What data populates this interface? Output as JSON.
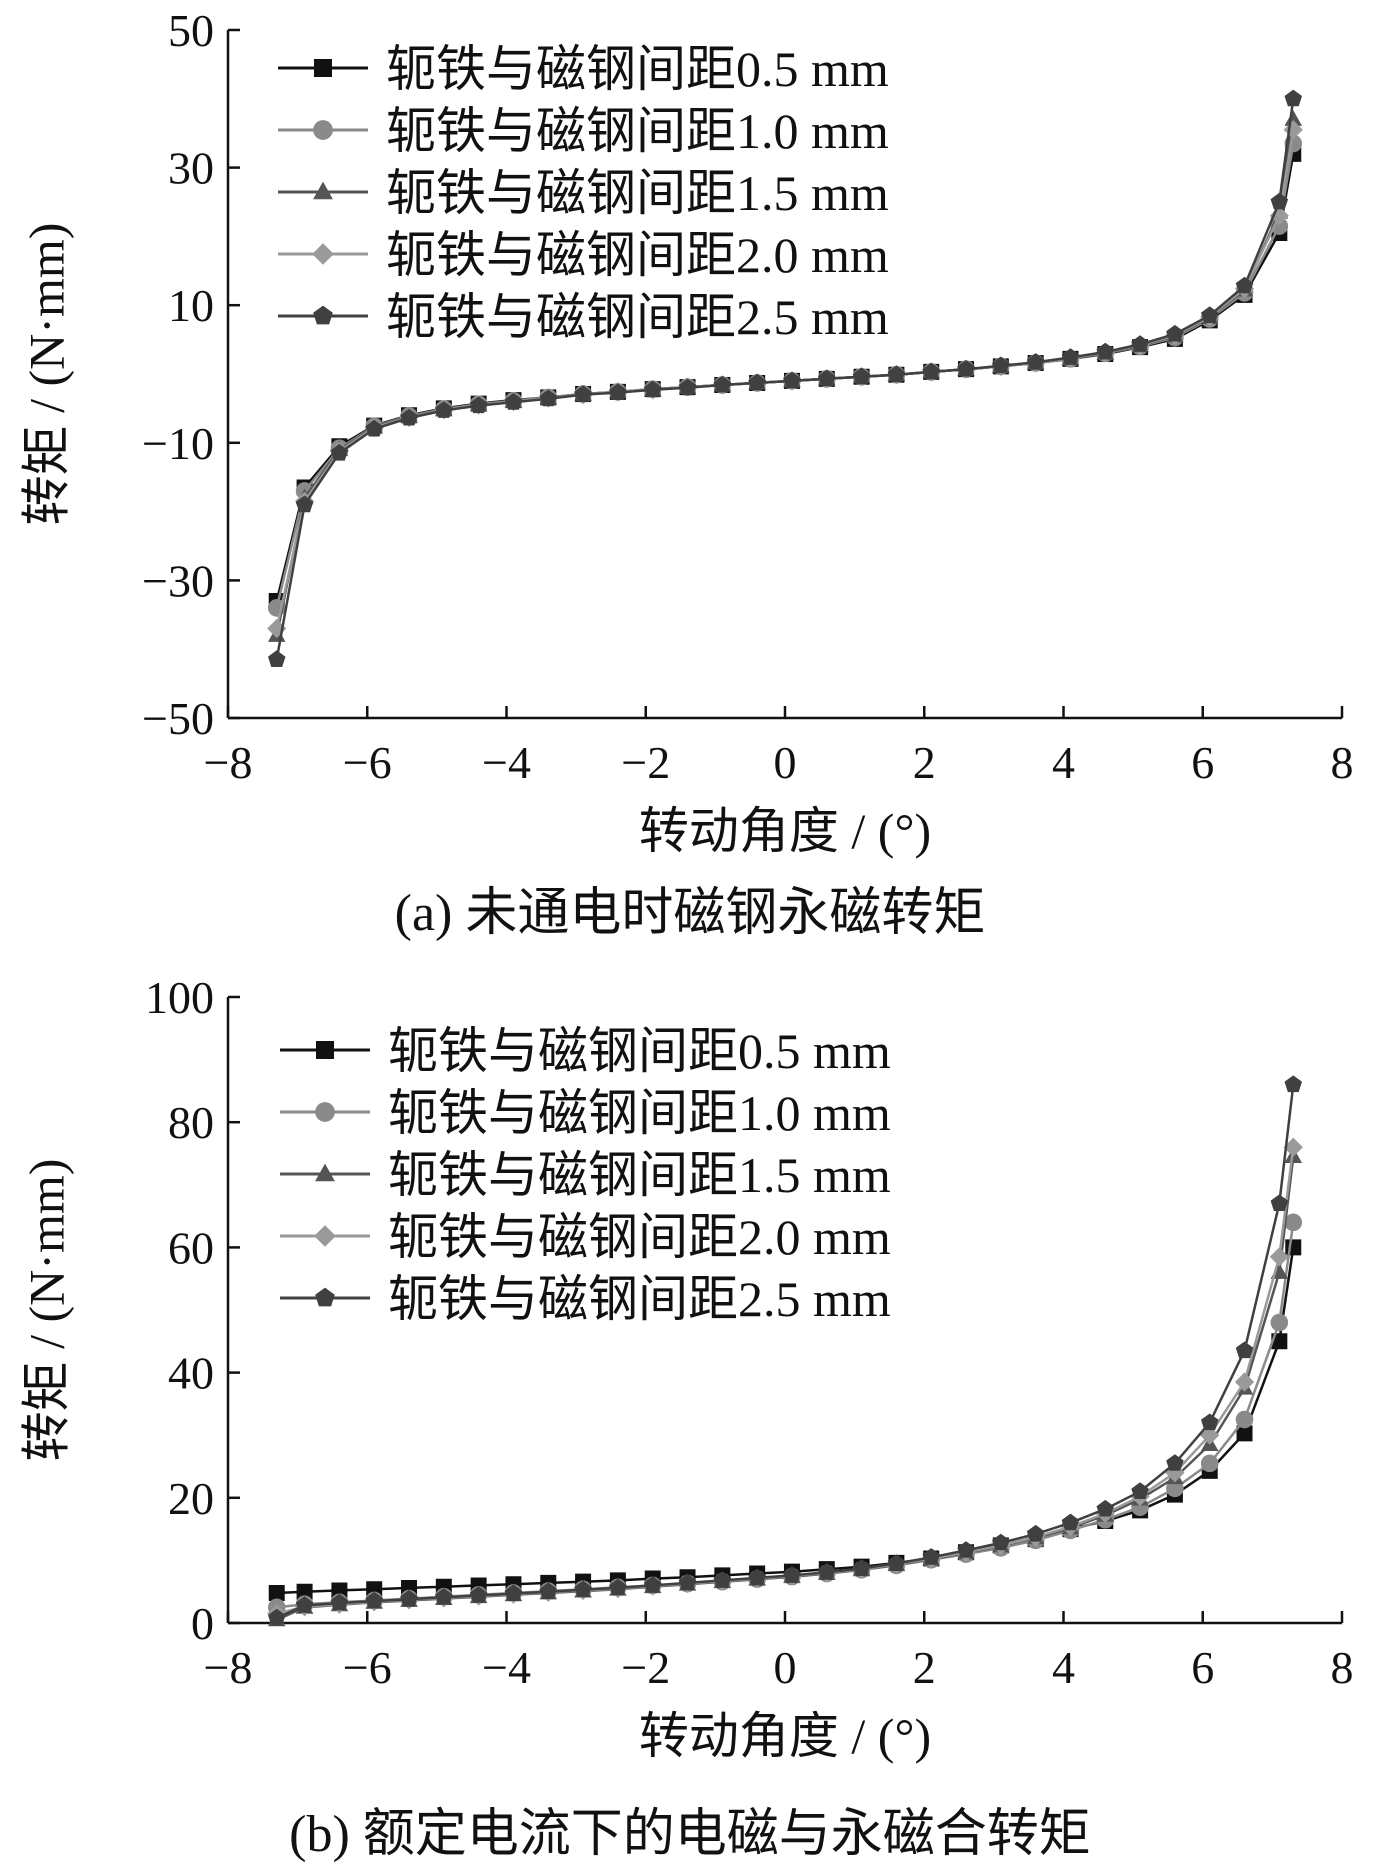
{
  "chart_data": [
    {
      "type": "line",
      "caption": "(a)  未通电时磁钢永磁转矩",
      "xlabel": "转动角度 / (°)",
      "ylabel": "转矩 / (N·mm)",
      "xlim": [
        -8,
        8
      ],
      "ylim": [
        -50,
        50
      ],
      "xticks": [
        -8,
        -6,
        -4,
        -2,
        0,
        2,
        4,
        6,
        8
      ],
      "yticks": [
        -50,
        -30,
        -10,
        10,
        30,
        50
      ],
      "ytick_labels": [
        "−50",
        "−30",
        "−10",
        "10",
        "30",
        "50"
      ],
      "xtick_labels": [
        "−8",
        "−6",
        "−4",
        "−2",
        "0",
        "2",
        "4",
        "6",
        "8"
      ],
      "grid": false,
      "legend_position": "top-left",
      "x": [
        -7.3,
        -6.9,
        -6.4,
        -5.9,
        -5.4,
        -4.9,
        -4.4,
        -3.9,
        -3.4,
        -2.9,
        -2.4,
        -1.9,
        -1.4,
        -0.9,
        -0.4,
        0.1,
        0.6,
        1.1,
        1.6,
        2.1,
        2.6,
        3.1,
        3.6,
        4.1,
        4.6,
        5.1,
        5.6,
        6.1,
        6.6,
        7.1,
        7.3
      ],
      "series": [
        {
          "name": "轭铁与磁钢间距0.5 mm",
          "marker": "square",
          "color": "#111111",
          "values": [
            -33,
            -16.5,
            -10.5,
            -7.5,
            -6,
            -5,
            -4.3,
            -3.8,
            -3.4,
            -2.9,
            -2.6,
            -2.2,
            -1.9,
            -1.6,
            -1.3,
            -1,
            -0.7,
            -0.4,
            -0.1,
            0.3,
            0.7,
            1.1,
            1.6,
            2.2,
            2.9,
            3.9,
            5.1,
            7.8,
            11.5,
            20.5,
            32
          ]
        },
        {
          "name": "轭铁与磁钢间距1.0 mm",
          "marker": "circle",
          "color": "#8a8a8a",
          "values": [
            -34,
            -17,
            -10.8,
            -7.6,
            -6.1,
            -5.1,
            -4.4,
            -3.9,
            -3.4,
            -2.9,
            -2.6,
            -2.2,
            -1.9,
            -1.6,
            -1.3,
            -1,
            -0.7,
            -0.4,
            -0.1,
            0.3,
            0.7,
            1.1,
            1.6,
            2.2,
            3,
            4,
            5.3,
            8,
            11.8,
            21.5,
            33.5
          ]
        },
        {
          "name": "轭铁与磁钢间距1.5 mm",
          "marker": "triangle",
          "color": "#555555",
          "values": [
            -38,
            -18,
            -11,
            -7.7,
            -6.2,
            -5.2,
            -4.5,
            -4,
            -3.5,
            -3,
            -2.6,
            -2.3,
            -1.9,
            -1.6,
            -1.3,
            -1,
            -0.7,
            -0.4,
            -0.1,
            0.3,
            0.7,
            1.1,
            1.6,
            2.2,
            3,
            4.1,
            5.5,
            8.2,
            12.2,
            23.5,
            37
          ]
        },
        {
          "name": "轭铁与磁钢间距2.0 mm",
          "marker": "diamond",
          "color": "#9a9a9a",
          "values": [
            -37,
            -18.5,
            -11.2,
            -7.8,
            -6.3,
            -5.2,
            -4.5,
            -4,
            -3.5,
            -3,
            -2.6,
            -2.3,
            -1.9,
            -1.6,
            -1.3,
            -1,
            -0.7,
            -0.4,
            -0.1,
            0.3,
            0.7,
            1.1,
            1.6,
            2.3,
            3.1,
            4.2,
            5.6,
            8.3,
            12.4,
            23,
            35.5
          ]
        },
        {
          "name": "轭铁与磁钢间距2.5 mm",
          "marker": "pentagon",
          "color": "#404040",
          "values": [
            -41.5,
            -19,
            -11.5,
            -8,
            -6.4,
            -5.3,
            -4.6,
            -4.1,
            -3.6,
            -3,
            -2.7,
            -2.3,
            -2,
            -1.6,
            -1.3,
            -1,
            -0.7,
            -0.4,
            -0.1,
            0.3,
            0.7,
            1.2,
            1.7,
            2.4,
            3.2,
            4.3,
            5.8,
            8.5,
            12.8,
            25,
            40
          ]
        }
      ]
    },
    {
      "type": "line",
      "caption": "(b)  额定电流下的电磁与永磁合转矩",
      "xlabel": "转动角度 / (°)",
      "ylabel": "转矩 / (N·mm)",
      "xlim": [
        -8,
        8
      ],
      "ylim": [
        0,
        100
      ],
      "xticks": [
        -8,
        -6,
        -4,
        -2,
        0,
        2,
        4,
        6,
        8
      ],
      "yticks": [
        0,
        20,
        40,
        60,
        80,
        100
      ],
      "ytick_labels": [
        "0",
        "20",
        "40",
        "60",
        "80",
        "100"
      ],
      "xtick_labels": [
        "−8",
        "−6",
        "−4",
        "−2",
        "0",
        "2",
        "4",
        "6",
        "8"
      ],
      "grid": false,
      "legend_position": "top-left",
      "x": [
        -7.3,
        -6.9,
        -6.4,
        -5.9,
        -5.4,
        -4.9,
        -4.4,
        -3.9,
        -3.4,
        -2.9,
        -2.4,
        -1.9,
        -1.4,
        -0.9,
        -0.4,
        0.1,
        0.6,
        1.1,
        1.6,
        2.1,
        2.6,
        3.1,
        3.6,
        4.1,
        4.6,
        5.1,
        5.6,
        6.1,
        6.6,
        7.1,
        7.3
      ],
      "series": [
        {
          "name": "轭铁与磁钢间距0.5 mm",
          "marker": "square",
          "color": "#111111",
          "values": [
            4.8,
            5,
            5.2,
            5.4,
            5.6,
            5.8,
            6,
            6.2,
            6.4,
            6.6,
            6.8,
            7.1,
            7.3,
            7.6,
            7.9,
            8.2,
            8.6,
            9,
            9.6,
            10.3,
            11.3,
            12.4,
            13.4,
            15,
            16.3,
            18,
            20.5,
            24.3,
            30.3,
            45,
            60
          ]
        },
        {
          "name": "轭铁与磁钢间距1.0 mm",
          "marker": "circle",
          "color": "#8a8a8a",
          "values": [
            2.5,
            3,
            3.3,
            3.6,
            3.9,
            4.2,
            4.5,
            4.8,
            5.1,
            5.4,
            5.7,
            6,
            6.3,
            6.6,
            7,
            7.4,
            7.9,
            8.5,
            9.2,
            10.1,
            11,
            12,
            13.2,
            14.8,
            16.5,
            18.5,
            21.5,
            25.5,
            32.5,
            48,
            64
          ]
        },
        {
          "name": "轭铁与磁钢间距1.5 mm",
          "marker": "triangle",
          "color": "#555555",
          "values": [
            0.5,
            2.5,
            2.9,
            3.3,
            3.6,
            3.9,
            4.2,
            4.5,
            4.8,
            5.1,
            5.4,
            5.8,
            6.2,
            6.6,
            7,
            7.4,
            7.9,
            8.5,
            9.3,
            10.2,
            11.2,
            12.3,
            13.6,
            15.2,
            17.2,
            19.8,
            23.2,
            28.5,
            37.5,
            56,
            74.5
          ]
        },
        {
          "name": "轭铁与磁钢间距2.0 mm",
          "marker": "diamond",
          "color": "#9a9a9a",
          "values": [
            1.5,
            2.6,
            3,
            3.4,
            3.7,
            4,
            4.3,
            4.6,
            4.9,
            5.2,
            5.5,
            5.9,
            6.3,
            6.7,
            7.1,
            7.5,
            8,
            8.6,
            9.4,
            10.3,
            11.3,
            12.4,
            13.7,
            15.4,
            17.5,
            20.2,
            24,
            30,
            38.5,
            58.5,
            76
          ]
        },
        {
          "name": "轭铁与磁钢间距2.5 mm",
          "marker": "pentagon",
          "color": "#404040",
          "values": [
            0.8,
            2.8,
            3.2,
            3.5,
            3.8,
            4.1,
            4.4,
            4.7,
            5,
            5.3,
            5.6,
            6,
            6.4,
            6.8,
            7.2,
            7.6,
            8.1,
            8.7,
            9.5,
            10.5,
            11.6,
            12.8,
            14.2,
            16,
            18.2,
            21,
            25.5,
            32,
            43.5,
            67,
            86
          ]
        }
      ]
    }
  ]
}
